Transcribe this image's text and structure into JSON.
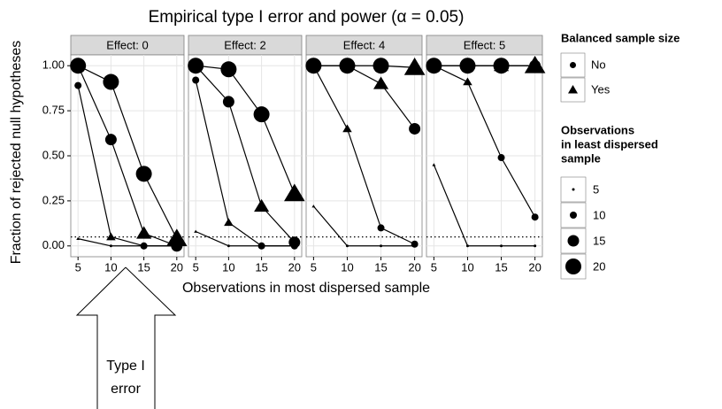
{
  "chart_data": {
    "type": "line",
    "title": "Empirical type I error and power (α = 0.05)",
    "x_label": "Observations in most dispersed sample",
    "y_label": "Fraction of rejected null hypotheses",
    "x": [
      5,
      10,
      15,
      20
    ],
    "xlim": [
      3.9,
      21.1
    ],
    "xticks": [
      5,
      10,
      15,
      20
    ],
    "ylim": [
      -0.06,
      1.06
    ],
    "yticks": [
      {
        "value": 0,
        "label": "0.00"
      },
      {
        "value": 0.25,
        "label": "0.25"
      },
      {
        "value": 0.5,
        "label": "0.50"
      },
      {
        "value": 0.75,
        "label": "0.75"
      },
      {
        "value": 1,
        "label": "1.00"
      }
    ],
    "reference_line": 0.05,
    "grid": true,
    "color": "#000000",
    "shape_legend": {
      "title": "Balanced sample size",
      "labels": [
        "No",
        "Yes"
      ]
    },
    "size_legend": {
      "title": [
        "Observations",
        "in least dispersed",
        "sample"
      ],
      "values": [
        5,
        10,
        15,
        20
      ]
    },
    "facets": [
      {
        "label": "Effect: 0",
        "series": [
          {
            "size": 5,
            "values": [
              0.04,
              0.0,
              0.0,
              0.0
            ]
          },
          {
            "size": 10,
            "values": [
              0.89,
              0.05,
              0.0,
              0.0
            ]
          },
          {
            "size": 15,
            "values": [
              1.0,
              0.59,
              0.07,
              0.0
            ]
          },
          {
            "size": 20,
            "values": [
              1.0,
              0.91,
              0.4,
              0.04
            ]
          }
        ]
      },
      {
        "label": "Effect: 2",
        "series": [
          {
            "size": 5,
            "values": [
              0.08,
              0.0,
              0.0,
              0.0
            ]
          },
          {
            "size": 10,
            "values": [
              0.92,
              0.13,
              0.0,
              0.0
            ]
          },
          {
            "size": 15,
            "values": [
              1.0,
              0.8,
              0.22,
              0.02
            ]
          },
          {
            "size": 20,
            "values": [
              1.0,
              0.98,
              0.73,
              0.29
            ]
          }
        ]
      },
      {
        "label": "Effect: 4",
        "series": [
          {
            "size": 5,
            "values": [
              0.22,
              0.0,
              0.0,
              0.0
            ]
          },
          {
            "size": 10,
            "values": [
              1.0,
              0.65,
              0.1,
              0.01
            ]
          },
          {
            "size": 15,
            "values": [
              1.0,
              1.0,
              0.9,
              0.65
            ]
          },
          {
            "size": 20,
            "values": [
              1.0,
              1.0,
              1.0,
              0.99
            ]
          }
        ]
      },
      {
        "label": "Effect: 5",
        "series": [
          {
            "size": 5,
            "values": [
              0.45,
              0.0,
              0.0,
              0.0
            ]
          },
          {
            "size": 10,
            "values": [
              1.0,
              0.91,
              0.49,
              0.16
            ]
          },
          {
            "size": 15,
            "values": [
              1.0,
              1.0,
              1.0,
              1.0
            ]
          },
          {
            "size": 20,
            "values": [
              1.0,
              1.0,
              1.0,
              1.0
            ]
          }
        ]
      }
    ]
  },
  "annotation": {
    "lines": [
      "Type I",
      "error"
    ]
  }
}
